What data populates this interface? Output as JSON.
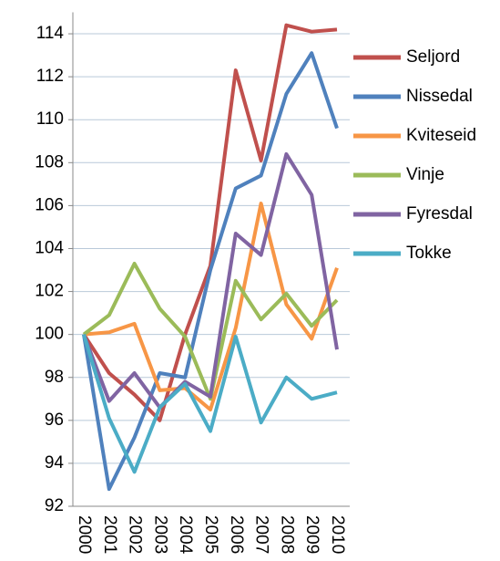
{
  "chart_data": {
    "type": "line",
    "categories": [
      "2000",
      "2001",
      "2002",
      "2003",
      "2004",
      "2005",
      "2006",
      "2007",
      "2008",
      "2009",
      "2010"
    ],
    "series": [
      {
        "name": "Seljord",
        "color": "#c0504d",
        "values": [
          100,
          98.2,
          97.2,
          96.0,
          100.0,
          103.2,
          112.3,
          108.1,
          114.4,
          114.1,
          114.2
        ]
      },
      {
        "name": "Nissedal",
        "color": "#4f81bd",
        "values": [
          100,
          92.8,
          95.2,
          98.2,
          98.0,
          103.0,
          106.8,
          107.4,
          111.2,
          113.1,
          109.6
        ]
      },
      {
        "name": "Kviteseid",
        "color": "#f79646",
        "values": [
          100,
          100.1,
          100.5,
          97.4,
          97.5,
          96.5,
          100.3,
          106.1,
          101.4,
          99.8,
          103.1
        ]
      },
      {
        "name": "Vinje",
        "color": "#9bbb59",
        "values": [
          100,
          100.9,
          103.3,
          101.2,
          99.9,
          97.0,
          102.5,
          100.7,
          101.9,
          100.4,
          101.6
        ]
      },
      {
        "name": "Fyresdal",
        "color": "#8064a2",
        "values": [
          100,
          96.9,
          98.2,
          96.6,
          97.8,
          97.1,
          104.7,
          103.7,
          108.4,
          106.5,
          99.3
        ]
      },
      {
        "name": "Tokke",
        "color": "#4bacc6",
        "values": [
          100,
          96.1,
          93.6,
          96.6,
          97.7,
          95.5,
          99.9,
          95.9,
          98.0,
          97.0,
          97.3
        ]
      }
    ],
    "ylim": [
      92,
      115
    ],
    "yticks": [
      92,
      94,
      96,
      98,
      100,
      102,
      104,
      106,
      108,
      110,
      112,
      114
    ],
    "grid": true,
    "legend": "right"
  }
}
